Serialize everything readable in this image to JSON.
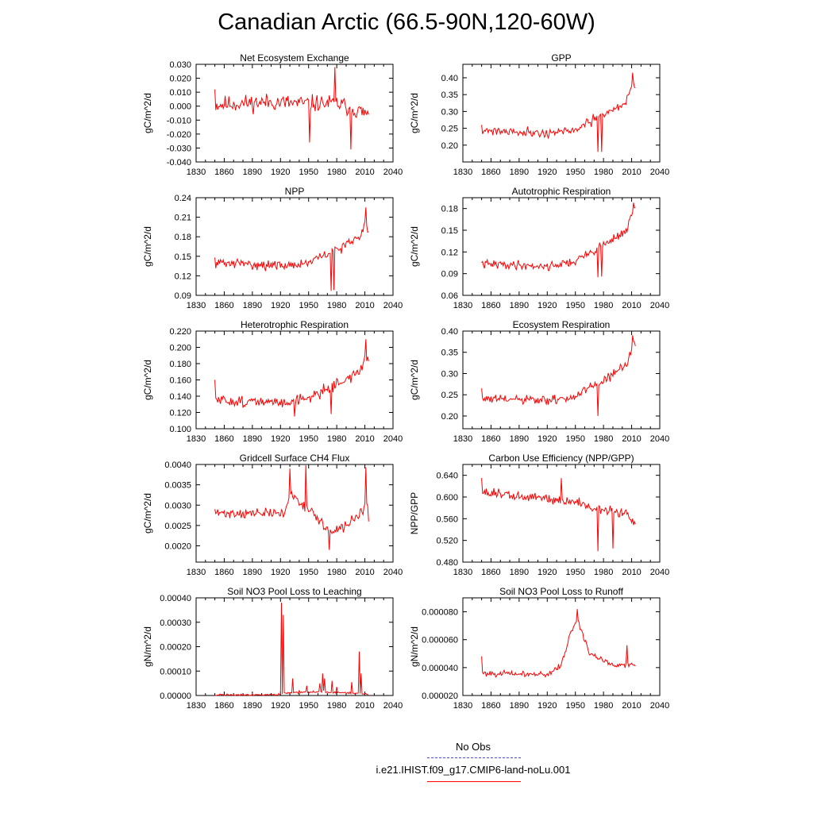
{
  "title": "Canadian Arctic (66.5-90N,120-60W)",
  "legend": {
    "obs_label": "No Obs",
    "obs_color": "#4b4bd6",
    "model_label": "i.e21.IHIST.f09_g17.CMIP6-land-noLu.001",
    "model_color": "#ff0000"
  },
  "chart_data": [
    {
      "type": "line",
      "title": "Net Ecosystem Exchange",
      "ylabel": "gC/m^2/d",
      "xlim": [
        1830,
        2040
      ],
      "xticks": [
        "1830",
        "1860",
        "1890",
        "1920",
        "1950",
        "1980",
        "2010",
        "2040"
      ],
      "ylim": [
        -0.04,
        0.03
      ],
      "yticks": [
        "-0.040",
        "-0.030",
        "-0.020",
        "-0.010",
        "0.000",
        "0.010",
        "0.020",
        "0.030"
      ],
      "series": [
        {
          "x_start": 1850,
          "x_end": 2014,
          "y_start": 0.012,
          "y_end": -0.006,
          "keypoints": [
            [
              1850,
              0.001
            ],
            [
              1880,
              0.002
            ],
            [
              1910,
              0.003
            ],
            [
              1940,
              0.002
            ],
            [
              1980,
              0.002
            ],
            [
              2014,
              -0.006
            ]
          ],
          "noise": 0.009,
          "spikes": [
            [
              1978,
              0.028
            ],
            [
              1995,
              -0.031
            ],
            [
              1951,
              -0.026
            ]
          ],
          "seed": 11
        }
      ]
    },
    {
      "type": "line",
      "title": "GPP",
      "ylabel": "gC/m^2/d",
      "xlim": [
        1830,
        2040
      ],
      "xticks": [
        "1830",
        "1860",
        "1890",
        "1920",
        "1950",
        "1980",
        "2010",
        "2040"
      ],
      "ylim": [
        0.15,
        0.44
      ],
      "yticks": [
        "0.20",
        "0.25",
        "0.30",
        "0.35",
        "0.40"
      ],
      "series": [
        {
          "x_start": 1850,
          "x_end": 2014,
          "y_start": 0.26,
          "y_end": 0.37,
          "keypoints": [
            [
              1850,
              0.245
            ],
            [
              1890,
              0.24
            ],
            [
              1920,
              0.235
            ],
            [
              1950,
              0.245
            ],
            [
              1980,
              0.29
            ],
            [
              2005,
              0.33
            ],
            [
              2011,
              0.39
            ],
            [
              2014,
              0.37
            ]
          ],
          "noise": 0.02,
          "spikes": [
            [
              1974,
              0.18
            ],
            [
              1978,
              0.18
            ],
            [
              2011,
              0.415
            ]
          ],
          "seed": 21
        }
      ]
    },
    {
      "type": "line",
      "title": "NPP",
      "ylabel": "gC/m^2/d",
      "xlim": [
        1830,
        2040
      ],
      "xticks": [
        "1830",
        "1860",
        "1890",
        "1920",
        "1950",
        "1980",
        "2010",
        "2040"
      ],
      "ylim": [
        0.09,
        0.24
      ],
      "yticks": [
        "0.09",
        "0.12",
        "0.15",
        "0.18",
        "0.21",
        "0.24"
      ],
      "series": [
        {
          "x_start": 1850,
          "x_end": 2014,
          "y_start": 0.148,
          "y_end": 0.188,
          "keypoints": [
            [
              1850,
              0.14
            ],
            [
              1890,
              0.138
            ],
            [
              1920,
              0.135
            ],
            [
              1950,
              0.14
            ],
            [
              1980,
              0.16
            ],
            [
              2005,
              0.18
            ],
            [
              2011,
              0.205
            ],
            [
              2014,
              0.19
            ]
          ],
          "noise": 0.011,
          "spikes": [
            [
              1974,
              0.097
            ],
            [
              1977,
              0.098
            ],
            [
              2011,
              0.225
            ]
          ],
          "seed": 31
        }
      ]
    },
    {
      "type": "line",
      "title": "Autotrophic Respiration",
      "ylabel": "gC/m^2/d",
      "xlim": [
        1830,
        2040
      ],
      "xticks": [
        "1830",
        "1860",
        "1890",
        "1920",
        "1950",
        "1980",
        "2010",
        "2040"
      ],
      "ylim": [
        0.06,
        0.195
      ],
      "yticks": [
        "0.06",
        "0.09",
        "0.12",
        "0.15",
        "0.18"
      ],
      "series": [
        {
          "x_start": 1850,
          "x_end": 2014,
          "y_start": 0.105,
          "y_end": 0.182,
          "keypoints": [
            [
              1850,
              0.103
            ],
            [
              1890,
              0.102
            ],
            [
              1920,
              0.1
            ],
            [
              1950,
              0.107
            ],
            [
              1980,
              0.13
            ],
            [
              2005,
              0.15
            ],
            [
              2011,
              0.175
            ],
            [
              2014,
              0.182
            ]
          ],
          "noise": 0.009,
          "spikes": [
            [
              1974,
              0.085
            ],
            [
              1978,
              0.086
            ],
            [
              2012,
              0.188
            ]
          ],
          "seed": 41
        }
      ]
    },
    {
      "type": "line",
      "title": "Heterotrophic Respiration",
      "ylabel": "gC/m^2/d",
      "xlim": [
        1830,
        2040
      ],
      "xticks": [
        "1830",
        "1860",
        "1890",
        "1920",
        "1950",
        "1980",
        "2010",
        "2040"
      ],
      "ylim": [
        0.1,
        0.22
      ],
      "yticks": [
        "0.100",
        "0.120",
        "0.140",
        "0.160",
        "0.180",
        "0.200",
        "0.220"
      ],
      "series": [
        {
          "x_start": 1850,
          "x_end": 2014,
          "y_start": 0.16,
          "y_end": 0.183,
          "keypoints": [
            [
              1850,
              0.135
            ],
            [
              1890,
              0.133
            ],
            [
              1920,
              0.132
            ],
            [
              1950,
              0.138
            ],
            [
              1980,
              0.155
            ],
            [
              2005,
              0.17
            ],
            [
              2011,
              0.19
            ],
            [
              2014,
              0.183
            ]
          ],
          "noise": 0.01,
          "spikes": [
            [
              1935,
              0.115
            ],
            [
              1974,
              0.118
            ],
            [
              2011,
              0.21
            ]
          ],
          "seed": 51
        }
      ]
    },
    {
      "type": "line",
      "title": "Ecosystem Respiration",
      "ylabel": "gC/m^2/d",
      "xlim": [
        1830,
        2040
      ],
      "xticks": [
        "1830",
        "1860",
        "1890",
        "1920",
        "1950",
        "1980",
        "2010",
        "2040"
      ],
      "ylim": [
        0.17,
        0.4
      ],
      "yticks": [
        "0.20",
        "0.25",
        "0.30",
        "0.35",
        "0.40"
      ],
      "series": [
        {
          "x_start": 1850,
          "x_end": 2014,
          "y_start": 0.265,
          "y_end": 0.365,
          "keypoints": [
            [
              1850,
              0.24
            ],
            [
              1890,
              0.238
            ],
            [
              1920,
              0.236
            ],
            [
              1950,
              0.245
            ],
            [
              1980,
              0.285
            ],
            [
              2005,
              0.32
            ],
            [
              2011,
              0.37
            ],
            [
              2014,
              0.365
            ]
          ],
          "noise": 0.017,
          "spikes": [
            [
              1974,
              0.2
            ],
            [
              2011,
              0.39
            ]
          ],
          "seed": 61
        }
      ]
    },
    {
      "type": "line",
      "title": "Gridcell Surface CH4 Flux",
      "ylabel": "gC/m^2/d",
      "xlim": [
        1830,
        2040
      ],
      "xticks": [
        "1830",
        "1860",
        "1890",
        "1920",
        "1950",
        "1980",
        "2010",
        "2040"
      ],
      "ylim": [
        0.0016,
        0.004
      ],
      "yticks": [
        "0.0020",
        "0.0025",
        "0.0030",
        "0.0035",
        "0.0040"
      ],
      "series": [
        {
          "x_start": 1850,
          "x_end": 2014,
          "y_start": 0.0029,
          "y_end": 0.0026,
          "keypoints": [
            [
              1850,
              0.0028
            ],
            [
              1890,
              0.0028
            ],
            [
              1925,
              0.0028
            ],
            [
              1930,
              0.0033
            ],
            [
              1950,
              0.0029
            ],
            [
              1975,
              0.0023
            ],
            [
              1990,
              0.0025
            ],
            [
              2014,
              0.003
            ]
          ],
          "noise": 0.00018,
          "spikes": [
            [
              1930,
              0.0039
            ],
            [
              1947,
              0.00398
            ],
            [
              1972,
              0.0019
            ],
            [
              2011,
              0.00393
            ]
          ],
          "seed": 71
        }
      ]
    },
    {
      "type": "line",
      "title": "Carbon Use Efficiency (NPP/GPP)",
      "ylabel": "NPP/GPP",
      "xlim": [
        1830,
        2040
      ],
      "xticks": [
        "1830",
        "1860",
        "1890",
        "1920",
        "1950",
        "1980",
        "2010",
        "2040"
      ],
      "ylim": [
        0.48,
        0.66
      ],
      "yticks": [
        "0.480",
        "0.520",
        "0.560",
        "0.600",
        "0.640"
      ],
      "series": [
        {
          "x_start": 1850,
          "x_end": 2014,
          "y_start": 0.635,
          "y_end": 0.55,
          "keypoints": [
            [
              1850,
              0.61
            ],
            [
              1890,
              0.6
            ],
            [
              1920,
              0.598
            ],
            [
              1950,
              0.59
            ],
            [
              1980,
              0.575
            ],
            [
              2005,
              0.57
            ],
            [
              2014,
              0.55
            ]
          ],
          "noise": 0.014,
          "spikes": [
            [
              1974,
              0.5
            ],
            [
              1990,
              0.505
            ],
            [
              1935,
              0.635
            ]
          ],
          "seed": 81
        }
      ]
    },
    {
      "type": "line",
      "title": "Soil NO3 Pool Loss to Leaching",
      "ylabel": "gN/m^2/d",
      "xlim": [
        1830,
        2040
      ],
      "xticks": [
        "1830",
        "1860",
        "1890",
        "1920",
        "1950",
        "1980",
        "2010",
        "2040"
      ],
      "ylim": [
        0,
        0.0004
      ],
      "yticks": [
        "0.00000",
        "0.00010",
        "0.00020",
        "0.00030",
        "0.00040"
      ],
      "series": [
        {
          "x_start": 1850,
          "x_end": 2014,
          "y_start": 0.0,
          "y_end": 0.0,
          "keypoints": [
            [
              1850,
              3e-06
            ],
            [
              1915,
              3e-06
            ],
            [
              1930,
              1.2e-05
            ],
            [
              1960,
              1.5e-05
            ],
            [
              1990,
              1e-05
            ],
            [
              2014,
              5e-06
            ]
          ],
          "noise": 6e-06,
          "clip_min": 0.0,
          "spikes": [
            [
              1921,
              0.00038
            ],
            [
              1923,
              0.00033
            ],
            [
              1933,
              7e-05
            ],
            [
              1940,
              2e-05
            ],
            [
              1948,
              4e-05
            ],
            [
              1962,
              5e-05
            ],
            [
              1965,
              9e-05
            ],
            [
              1967,
              7e-05
            ],
            [
              1975,
              6e-05
            ],
            [
              1980,
              3.5e-05
            ],
            [
              1996,
              5.5e-05
            ],
            [
              2004,
              0.00018
            ],
            [
              2006,
              9e-05
            ]
          ],
          "seed": 91
        }
      ]
    },
    {
      "type": "line",
      "title": "Soil NO3 Pool Loss to Runoff",
      "ylabel": "gN/m^2/d",
      "xlim": [
        1830,
        2040
      ],
      "xticks": [
        "1830",
        "1860",
        "1890",
        "1920",
        "1950",
        "1980",
        "2010",
        "2040"
      ],
      "ylim": [
        2e-05,
        9e-05
      ],
      "yticks": [
        "0.000020",
        "0.000040",
        "0.000060",
        "0.000080"
      ],
      "series": [
        {
          "x_start": 1850,
          "x_end": 2014,
          "y_start": 4.8e-05,
          "y_end": 4.1e-05,
          "keypoints": [
            [
              1850,
              3.6e-05
            ],
            [
              1920,
              3.5e-05
            ],
            [
              1935,
              4.2e-05
            ],
            [
              1945,
              6.5e-05
            ],
            [
              1952,
              7.5e-05
            ],
            [
              1965,
              5e-05
            ],
            [
              1990,
              4.2e-05
            ],
            [
              2014,
              4.2e-05
            ]
          ],
          "noise": 3e-06,
          "spikes": [
            [
              1952,
              8.2e-05
            ],
            [
              2005,
              5.6e-05
            ]
          ],
          "seed": 101
        }
      ]
    }
  ]
}
